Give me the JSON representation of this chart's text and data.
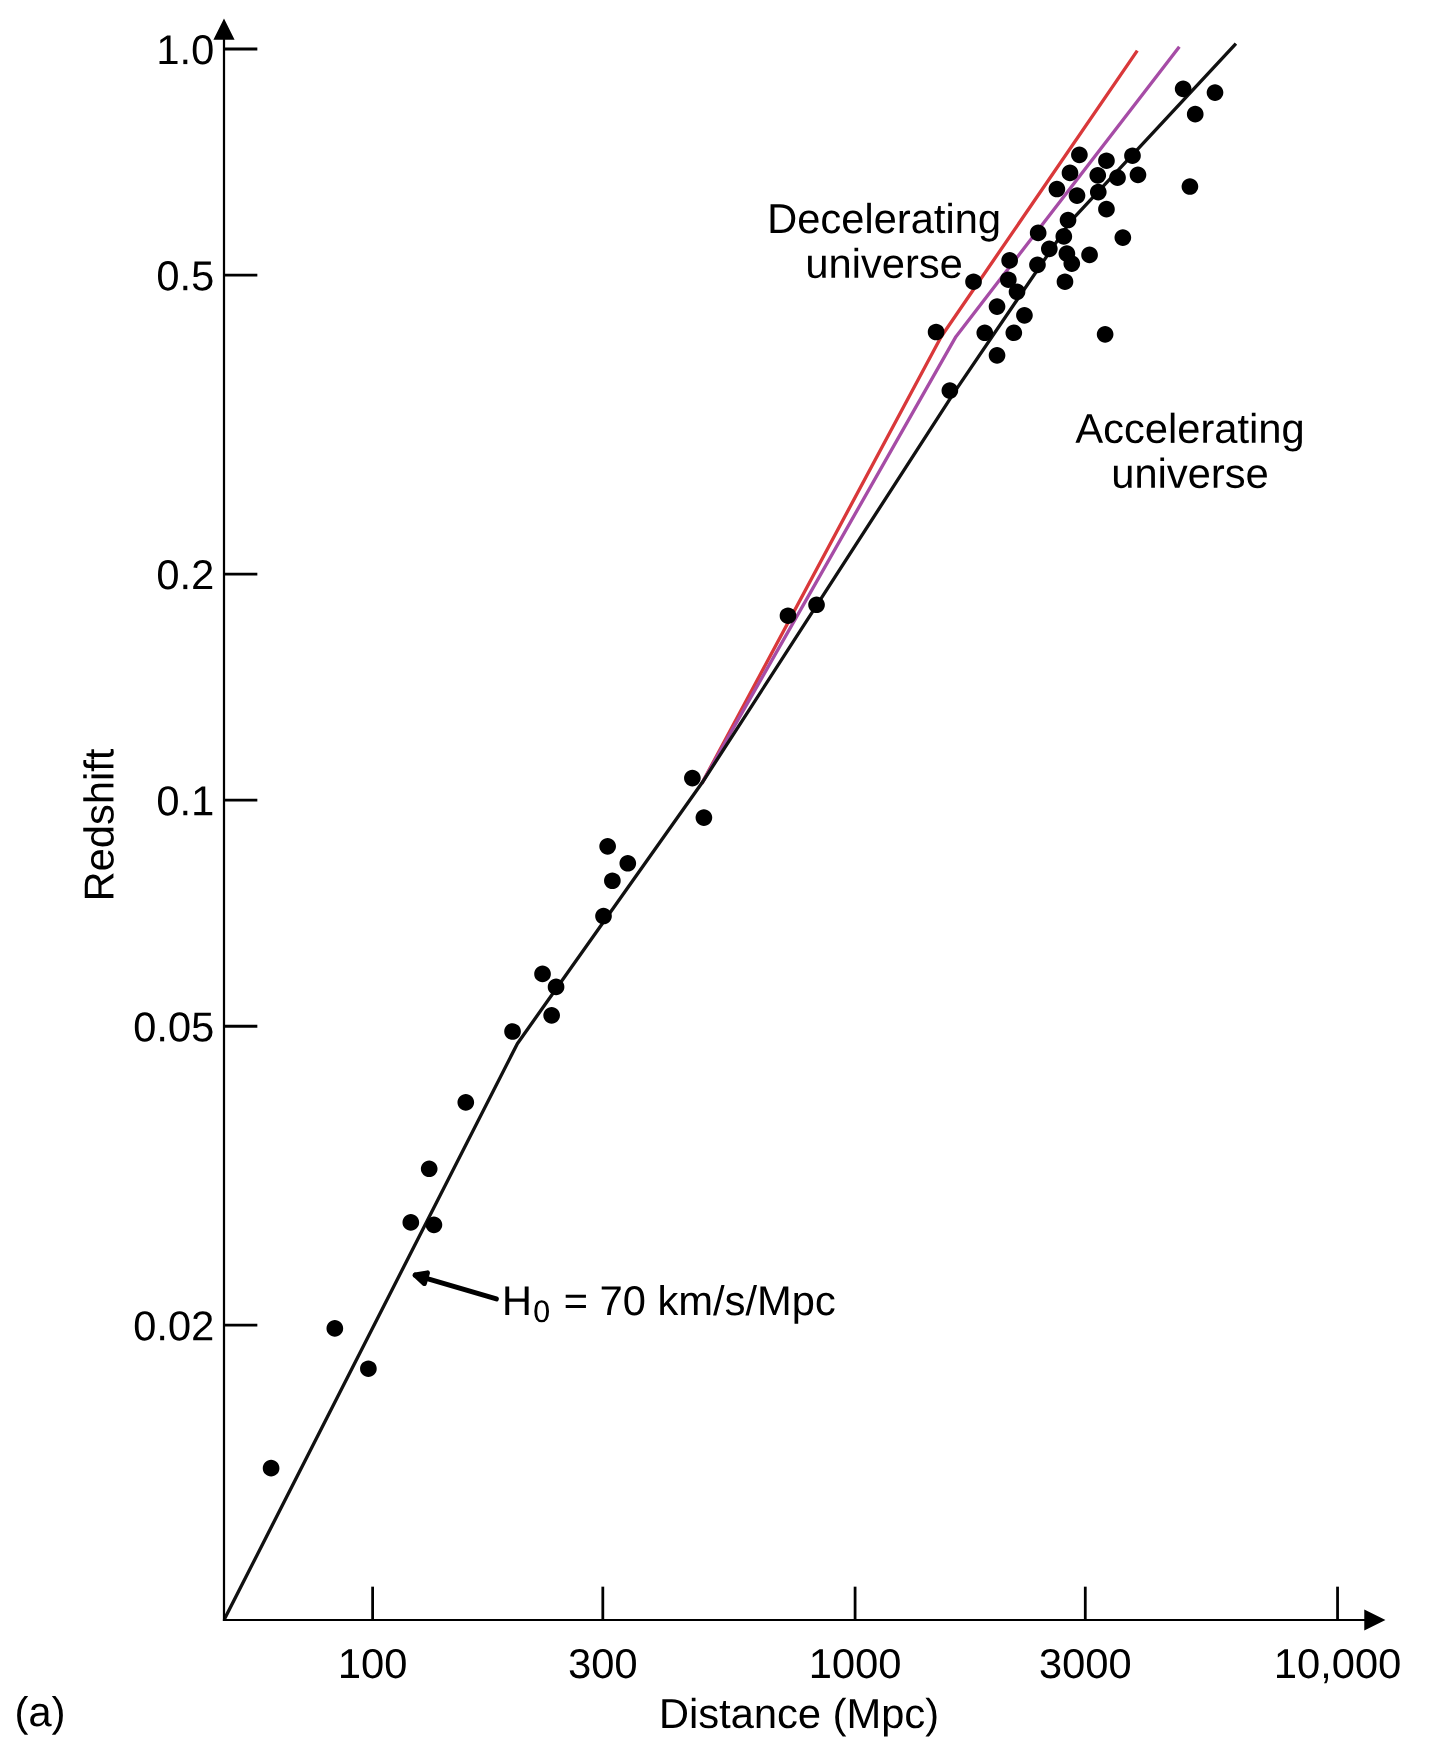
{
  "chart_data": {
    "type": "scatter",
    "xlabel": "Distance (Mpc)",
    "ylabel": "Redshift",
    "log": "xy",
    "grid": false,
    "xlim": [
      49.2,
      11900
    ],
    "ylim": [
      0.0081,
      1.06
    ],
    "xticks": [
      100,
      300,
      1000,
      3000,
      {
        "value": 10000,
        "label": "10,000"
      }
    ],
    "yticks": [
      0.02,
      0.05,
      0.1,
      0.2,
      0.5,
      {
        "value": 1.0,
        "label": "1.0"
      }
    ],
    "series": [
      {
        "type": "line",
        "color": "#d9383a",
        "marker": "none",
        "x": [
          483,
          1508,
          3828
        ],
        "values": [
          0.1057,
          0.414,
          0.991
        ]
      },
      {
        "type": "line",
        "color": "#a64ca6",
        "marker": "none",
        "x": [
          483,
          1618,
          4677
        ],
        "values": [
          0.1057,
          0.414,
          1.003
        ]
      },
      {
        "type": "line",
        "color": "#111111",
        "marker": "none",
        "x": [
          49.2,
          199.5,
          483,
          1600,
          2793,
          6124
        ],
        "values": [
          0.0081,
          0.0474,
          0.1057,
          0.348,
          0.589,
          1.013
        ]
      },
      {
        "color": "#000000",
        "marker": "circle",
        "x": [
          61.6,
          83.5,
          98,
          120,
          134,
          131,
          156,
          195,
          235,
          240,
          225,
          301,
          314,
          307,
          338,
          460,
          486,
          726,
          832,
          1472,
          1572,
          1760,
          1857,
          1969,
          1969,
          2078,
          2091,
          2133,
          2166,
          2244,
          2388,
          2396,
          2527,
          2620,
          2708,
          2723,
          2748,
          2763,
          2789,
          2813,
          2884,
          2917,
          3062,
          3184,
          3192,
          3298,
          3319,
          3319,
          3499,
          3589,
          3758,
          3858,
          4786,
          4943,
          5070,
          5572
        ],
        "values": [
          0.0129,
          0.0198,
          0.0175,
          0.0274,
          0.0272,
          0.0323,
          0.0396,
          0.0492,
          0.0517,
          0.0564,
          0.0587,
          0.0701,
          0.0781,
          0.0868,
          0.0824,
          0.107,
          0.0948,
          0.176,
          0.182,
          0.42,
          0.351,
          0.49,
          0.419,
          0.454,
          0.391,
          0.493,
          0.523,
          0.419,
          0.475,
          0.442,
          0.516,
          0.569,
          0.542,
          0.651,
          0.563,
          0.49,
          0.534,
          0.592,
          0.684,
          0.518,
          0.638,
          0.723,
          0.532,
          0.679,
          0.645,
          0.417,
          0.71,
          0.612,
          0.674,
          0.561,
          0.721,
          0.68,
          0.885,
          0.656,
          0.819,
          0.875
        ]
      }
    ],
    "annotations": [
      {
        "text": "H$_{0}$ = 70 km/s/Mpc",
        "x": 115,
        "y": 0.0236
      },
      "Decelerating\nuniverse",
      "Accelerating\nuniverse",
      "(a)"
    ]
  }
}
